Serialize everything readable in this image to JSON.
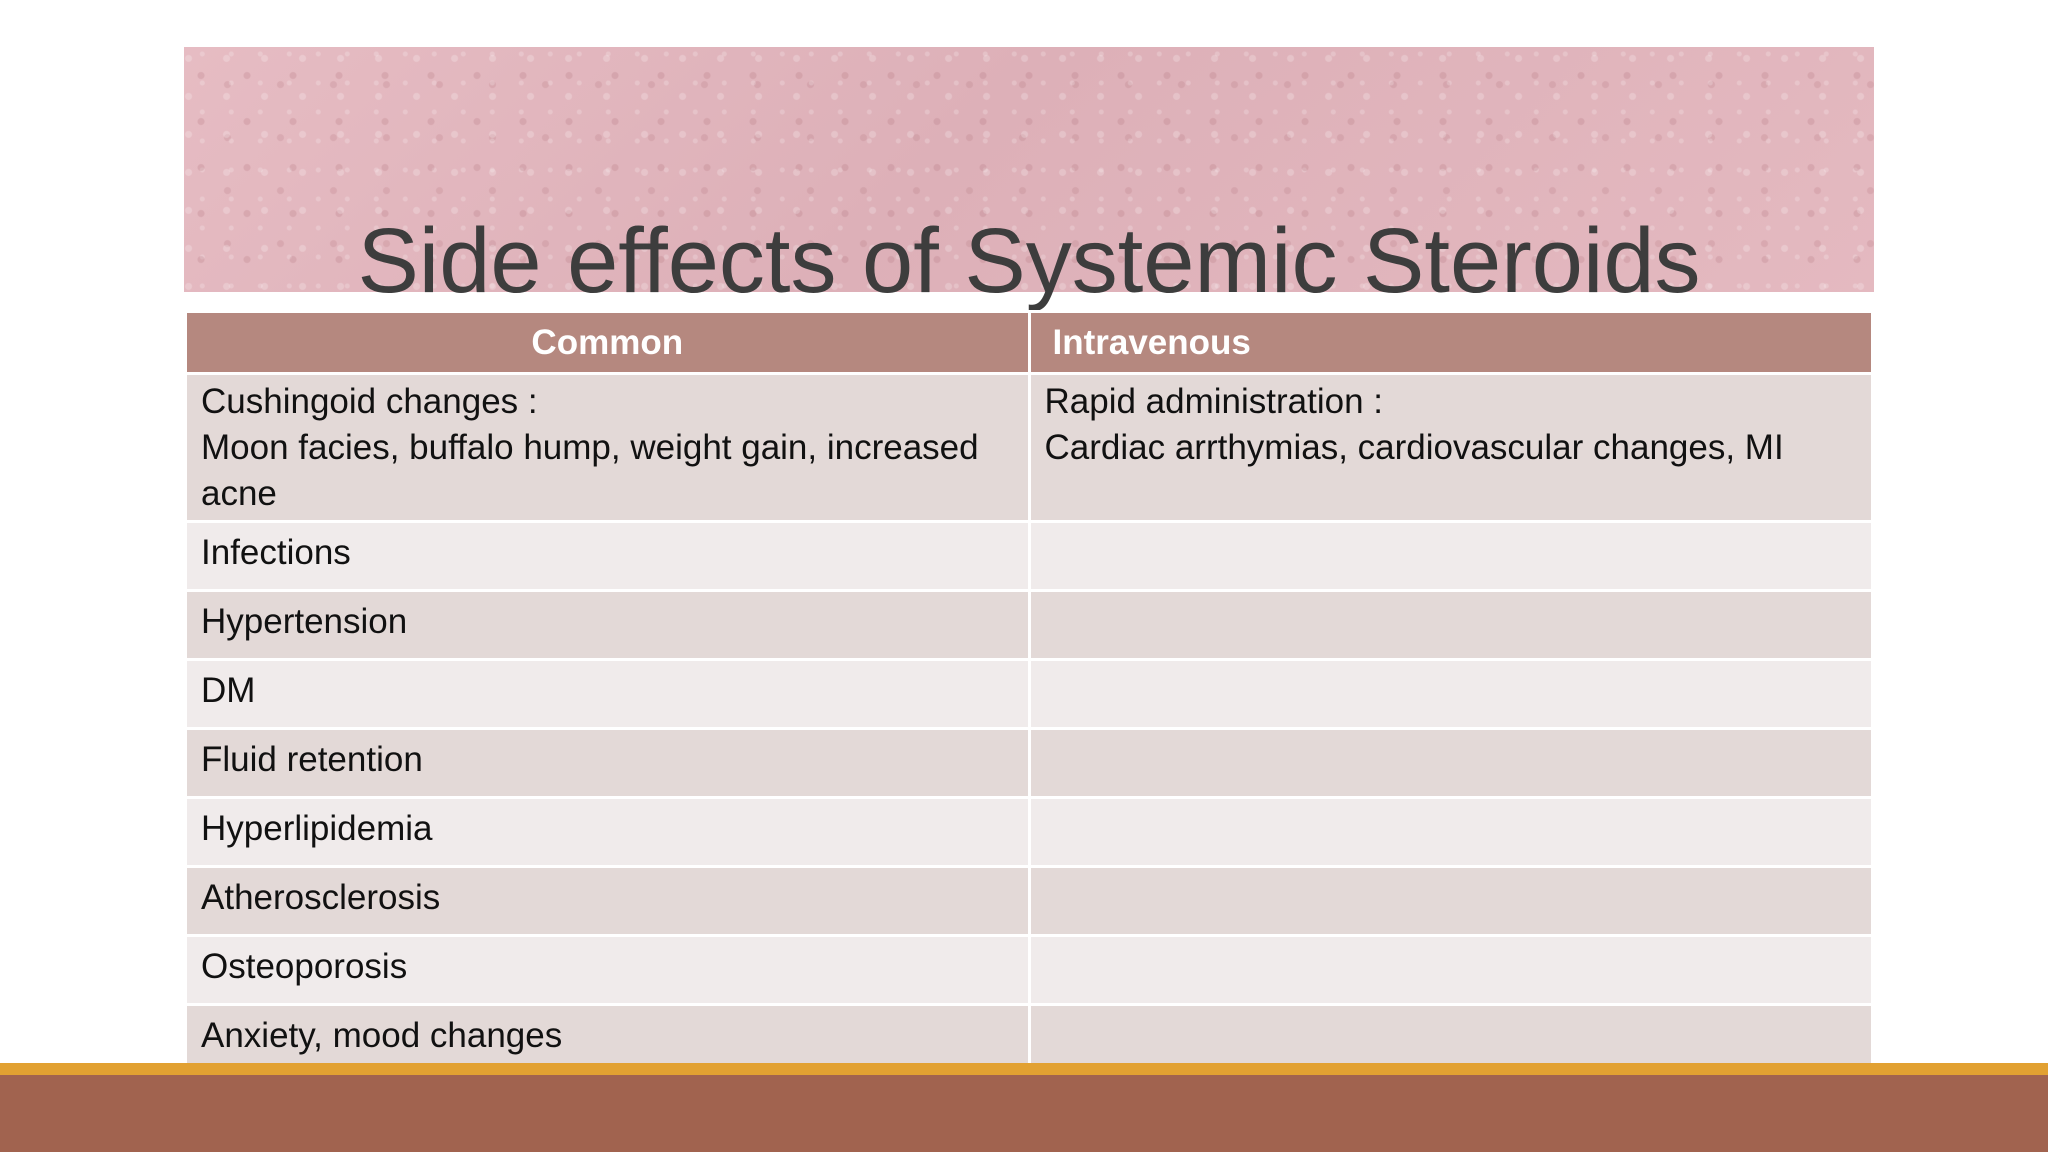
{
  "slide": {
    "title": "Side effects of Systemic Steroids"
  },
  "table": {
    "headers": {
      "common": "Common",
      "intravenous": "Intravenous"
    },
    "rows": [
      {
        "common_lines": [
          "Cushingoid changes :",
          "Moon facies, buffalo hump, weight gain, increased acne"
        ],
        "intravenous_lines": [
          "Rapid administration :",
          "Cardiac arrthymias, cardiovascular changes, MI"
        ]
      },
      {
        "common": "Infections",
        "intravenous": ""
      },
      {
        "common": "Hypertension",
        "intravenous": ""
      },
      {
        "common": "DM",
        "intravenous": ""
      },
      {
        "common": "Fluid retention",
        "intravenous": ""
      },
      {
        "common": "Hyperlipidemia",
        "intravenous": ""
      },
      {
        "common": "Atherosclerosis",
        "intravenous": ""
      },
      {
        "common": "Osteoporosis",
        "intravenous": ""
      },
      {
        "common": "Anxiety, mood changes",
        "intravenous": ""
      }
    ]
  },
  "colors": {
    "title_band": "#e2b6bd",
    "header_bg": "#b5887f",
    "row_odd": "#e3d9d7",
    "row_even": "#f0ebeb",
    "accent_bar": "#e2a132",
    "bottom_bar": "#a1634f"
  }
}
